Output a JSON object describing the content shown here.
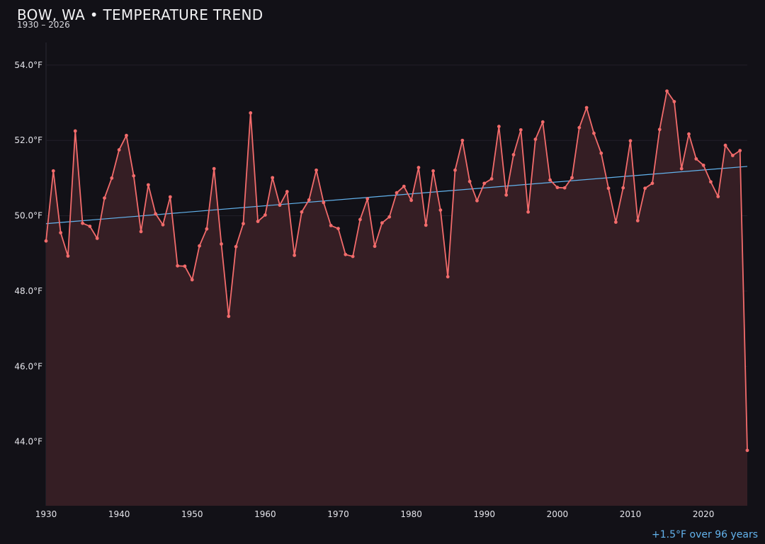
{
  "title": "BOW, WA • TEMPERATURE TREND",
  "subtitle": "1930 – 2026",
  "trend_note": "+1.5°F over 96 years",
  "colors": {
    "background": "#121117",
    "series_line": "#f26b6b",
    "area_fill": "#351e24",
    "trend_line": "#63b3ed",
    "grid": "#22212a"
  },
  "chart_data": {
    "type": "line",
    "xlabel": "",
    "ylabel": "",
    "xlim": [
      1930,
      2026
    ],
    "ylim": [
      42.3,
      54.6
    ],
    "x_ticks": [
      1930,
      1940,
      1950,
      1960,
      1970,
      1980,
      1990,
      2000,
      2010,
      2020
    ],
    "x_tick_labels": [
      "1930",
      "1940",
      "1950",
      "1960",
      "1970",
      "1980",
      "1990",
      "2000",
      "2010",
      "2020"
    ],
    "y_ticks": [
      44,
      46,
      48,
      50,
      52,
      54
    ],
    "y_tick_labels": [
      "44.0°F",
      "46.0°F",
      "48.0°F",
      "50.0°F",
      "52.0°F",
      "54.0°F"
    ],
    "grid": true,
    "series": [
      {
        "x": [
          1930,
          1931,
          1932,
          1933,
          1934,
          1935,
          1936,
          1937,
          1938,
          1939,
          1940,
          1941,
          1942,
          1943,
          1944,
          1945,
          1946,
          1947,
          1948,
          1949,
          1950,
          1951,
          1952,
          1953,
          1954,
          1955,
          1956,
          1957,
          1958,
          1959,
          1960,
          1961,
          1962,
          1963,
          1964,
          1965,
          1966,
          1967,
          1968,
          1969,
          1970,
          1971,
          1972,
          1973,
          1974,
          1975,
          1976,
          1977,
          1978,
          1979,
          1980,
          1981,
          1982,
          1983,
          1984,
          1985,
          1986,
          1987,
          1988,
          1989,
          1990,
          1991,
          1992,
          1993,
          1994,
          1995,
          1996,
          1997,
          1998,
          1999,
          2000,
          2001,
          2002,
          2003,
          2004,
          2005,
          2006,
          2007,
          2008,
          2009,
          2010,
          2011,
          2012,
          2013,
          2014,
          2015,
          2016,
          2017,
          2018,
          2019,
          2020,
          2021,
          2022,
          2023,
          2024,
          2025,
          2026
        ],
        "values": [
          49.33,
          51.19,
          49.55,
          48.93,
          52.25,
          49.8,
          49.72,
          49.4,
          50.47,
          51.0,
          51.75,
          52.13,
          51.06,
          49.58,
          50.82,
          50.05,
          49.76,
          50.5,
          48.67,
          48.66,
          48.3,
          49.2,
          49.65,
          51.25,
          49.25,
          47.33,
          49.18,
          49.79,
          52.73,
          49.85,
          50.02,
          51.01,
          50.28,
          50.64,
          48.95,
          50.1,
          50.42,
          51.21,
          50.35,
          49.74,
          49.66,
          48.97,
          48.92,
          49.9,
          50.45,
          49.19,
          49.81,
          49.97,
          50.61,
          50.78,
          50.41,
          51.28,
          49.75,
          51.19,
          50.15,
          48.38,
          51.21,
          52.0,
          50.91,
          50.4,
          50.86,
          50.98,
          52.37,
          50.55,
          51.62,
          52.28,
          50.1,
          52.03,
          52.49,
          50.95,
          50.75,
          50.74,
          51.01,
          52.34,
          52.87,
          52.19,
          51.66,
          50.73,
          49.83,
          50.74,
          51.99,
          49.87,
          50.73,
          50.86,
          52.29,
          53.31,
          53.03,
          51.25,
          52.17,
          51.51,
          51.34,
          50.9,
          50.51,
          51.87,
          51.6,
          51.73,
          43.77
        ]
      }
    ],
    "trend": {
      "x": [
        1930,
        2026
      ],
      "values": [
        49.79,
        51.31
      ]
    }
  }
}
